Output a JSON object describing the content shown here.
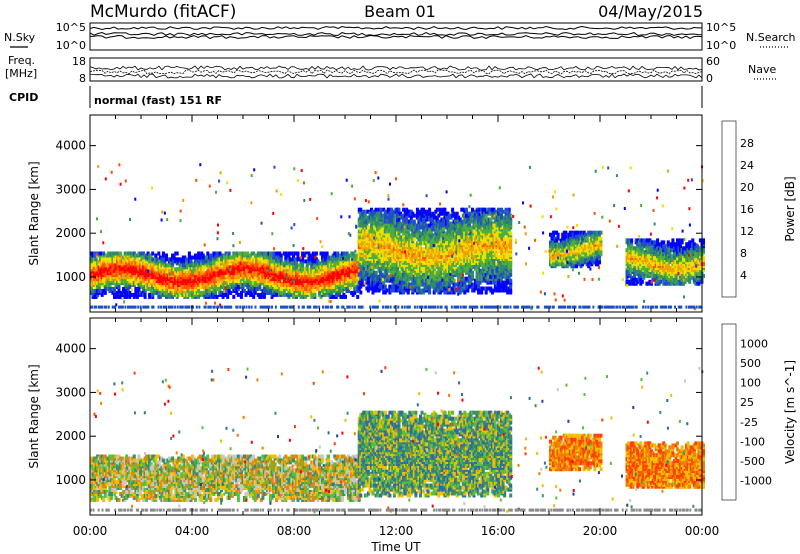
{
  "header": {
    "station": "McMurdo (fitACF)",
    "beam": "Beam 01",
    "date": "04/May/2015"
  },
  "status_panels": {
    "nsky_label": "N.Sky",
    "nsearch_label": "N.Search",
    "noise_ticks": [
      "10^5",
      "10^0"
    ],
    "freq_label_line1": "Freq.",
    "freq_label_line2": "[MHz]",
    "freq_ticks": [
      "18",
      "8"
    ],
    "nave_label": "Nave",
    "nave_ticks": [
      "60",
      "0"
    ],
    "cpid_label": "CPID",
    "cpid_text": "normal (fast) 151 RF"
  },
  "chart_data": [
    {
      "type": "heatmap",
      "title": "",
      "xlabel": "Time UT",
      "ylabel": "Slant Range [km]",
      "x_ticks": [
        "00:00",
        "04:00",
        "08:00",
        "12:00",
        "16:00",
        "20:00",
        "00:00"
      ],
      "y_ticks": [
        1000,
        2000,
        3000,
        4000
      ],
      "xlim_hours": [
        0,
        24
      ],
      "ylim_km": [
        200,
        4700
      ],
      "colorbar": {
        "label": "Power [dB]",
        "ticks": [
          4,
          8,
          12,
          16,
          20,
          24,
          28
        ],
        "range": [
          0,
          32
        ],
        "colors": [
          "#0000ff",
          "#1e4fc8",
          "#2f8a6a",
          "#4fae3a",
          "#f0e000",
          "#f0a000",
          "#ff5000",
          "#ff0000"
        ]
      },
      "echo_regions": [
        {
          "t_start": 0.0,
          "t_end": 10.5,
          "range_min_km": 500,
          "range_max_km": 1500,
          "dominant_power_db": 26
        },
        {
          "t_start": 10.5,
          "t_end": 16.5,
          "range_min_km": 600,
          "range_max_km": 2500,
          "dominant_power_db": 14
        },
        {
          "t_start": 18.0,
          "t_end": 20.0,
          "range_min_km": 1200,
          "range_max_km": 2000,
          "dominant_power_db": 12
        },
        {
          "t_start": 21.0,
          "t_end": 24.0,
          "range_min_km": 800,
          "range_max_km": 1800,
          "dominant_power_db": 10
        }
      ]
    },
    {
      "type": "heatmap",
      "title": "",
      "xlabel": "Time UT",
      "ylabel": "Slant Range [km]",
      "x_ticks": [
        "00:00",
        "04:00",
        "08:00",
        "12:00",
        "16:00",
        "20:00",
        "00:00"
      ],
      "y_ticks": [
        1000,
        2000,
        3000,
        4000
      ],
      "xlim_hours": [
        0,
        24
      ],
      "ylim_km": [
        200,
        4700
      ],
      "colorbar": {
        "label": "Velocity [m s^-1]",
        "tick_labels": [
          "1000",
          "500",
          "100",
          "25",
          "-25",
          "-100",
          "-500",
          "-1000"
        ],
        "colors": [
          "#1e3fa0",
          "#2f6aa6",
          "#3a8f6a",
          "#5abf3a",
          "#c8c8c8",
          "#f0c000",
          "#f08000",
          "#ff4000",
          "#ff0000"
        ]
      },
      "echo_regions": [
        {
          "t_start": 0.0,
          "t_end": 10.5,
          "range_min_km": 500,
          "range_max_km": 1500,
          "dominant_velocity": "-100 to 100"
        },
        {
          "t_start": 10.5,
          "t_end": 16.5,
          "range_min_km": 600,
          "range_max_km": 2500,
          "dominant_velocity": "0 to 500"
        },
        {
          "t_start": 18.0,
          "t_end": 20.0,
          "range_min_km": 1200,
          "range_max_km": 2000,
          "dominant_velocity": "-100 to -500"
        },
        {
          "t_start": 21.0,
          "t_end": 24.0,
          "range_min_km": 800,
          "range_max_km": 1800,
          "dominant_velocity": "-100 to -500"
        }
      ]
    }
  ]
}
